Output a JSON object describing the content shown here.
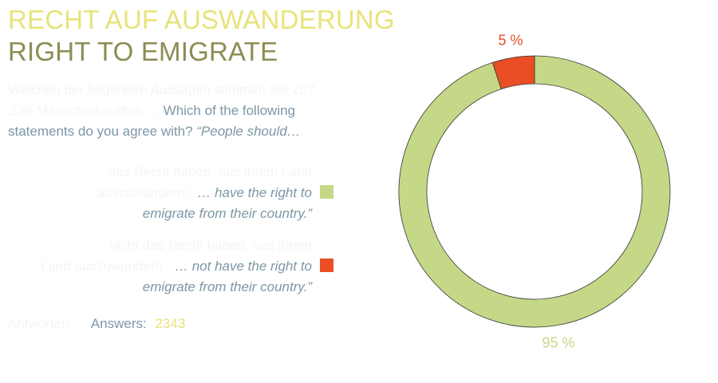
{
  "titles": {
    "de": "RECHT AUF AUSWANDERUNG",
    "en": "RIGHT TO EMIGRATE"
  },
  "question": {
    "de": "Welchen der folgenden Aussagen stimmen Sie zu? „Die Menschen sollten …",
    "en": "Which of the following statements do you agree with?",
    "en_quote": "“People should…"
  },
  "legend": [
    {
      "de_1": "… das Recht haben, aus ihrem Land",
      "de_2": "auszuwandern.“",
      "en_1": "… have the right to",
      "en_2": "emigrate from their country.”",
      "color": "#c5d887"
    },
    {
      "de_1": "… nicht das Recht haben, aus ihrem",
      "de_2": "Land auszuwandern.“",
      "en_1": "… not have the right to",
      "en_2": "emigrate from their country.”",
      "color": "#e94e24"
    }
  ],
  "answers": {
    "de_label": "Antworten:",
    "label": "Answers:",
    "count": "2343"
  },
  "chart_data": {
    "type": "pie",
    "donut": true,
    "categories": [
      "have the right to emigrate",
      "not have the right to emigrate"
    ],
    "values": [
      95,
      5
    ],
    "labels": [
      "95 %",
      "5 %"
    ],
    "colors": [
      "#c5d887",
      "#e94e24"
    ],
    "label_colors": [
      "#c5d887",
      "#e94e24"
    ]
  }
}
